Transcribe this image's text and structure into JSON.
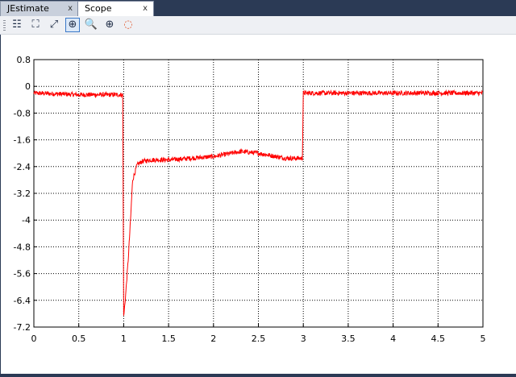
{
  "tabs": [
    {
      "label": "JEstimate",
      "close": "x",
      "active": false
    },
    {
      "label": "Scope",
      "close": "x",
      "active": true
    }
  ],
  "toolbar": {
    "buttons": [
      {
        "icon": "list-icon",
        "glyph": "☷"
      },
      {
        "icon": "fit-icon",
        "glyph": "⛶"
      },
      {
        "icon": "expand-icon",
        "glyph": "⤢"
      },
      {
        "icon": "zoom-box-icon",
        "glyph": "⊕",
        "active": true
      },
      {
        "icon": "zoom-in-icon",
        "glyph": "🔍"
      },
      {
        "icon": "zoom-x-icon",
        "glyph": "⊕"
      },
      {
        "icon": "color-wheel-icon",
        "glyph": "◌"
      }
    ]
  },
  "chart_data": {
    "type": "line",
    "title": "",
    "xlabel": "",
    "ylabel": "",
    "xlim": [
      0,
      5
    ],
    "ylim": [
      -7.2,
      0.8
    ],
    "grid": true,
    "x_ticks": [
      "0",
      "0.5",
      "1",
      "1.5",
      "2",
      "2.5",
      "3",
      "3.5",
      "4",
      "4.5",
      "5"
    ],
    "y_ticks": [
      "0.8",
      "0",
      "-0.8",
      "-1.6",
      "-2.4",
      "-3.2",
      "-4",
      "-4.8",
      "-5.6",
      "-6.4",
      "-7.2"
    ],
    "series": [
      {
        "color": "#ff0000",
        "noise": 0.07,
        "x": [
          0,
          0.5,
          0.99,
          1.0,
          1.02,
          1.05,
          1.08,
          1.1,
          1.15,
          1.2,
          1.3,
          1.5,
          2.0,
          2.3,
          2.5,
          2.8,
          2.99,
          3.0,
          3.5,
          4.0,
          4.5,
          5.0
        ],
        "y": [
          -0.2,
          -0.25,
          -0.25,
          -6.9,
          -6.3,
          -5.2,
          -3.8,
          -2.8,
          -2.35,
          -2.25,
          -2.2,
          -2.2,
          -2.1,
          -1.95,
          -2.0,
          -2.15,
          -2.15,
          -0.2,
          -0.2,
          -0.2,
          -0.2,
          -0.2
        ]
      }
    ]
  }
}
